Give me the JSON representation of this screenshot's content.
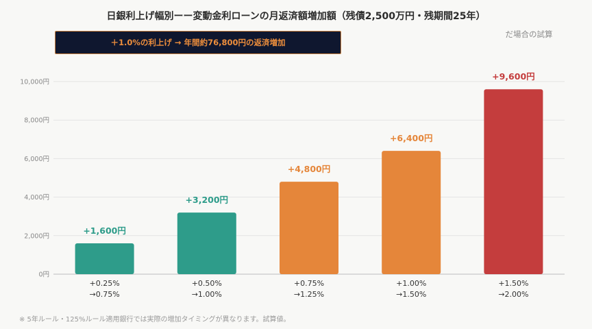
{
  "chart_data": {
    "type": "bar",
    "title": "日銀利上げ幅別ーー変動金利ローンの月返済額増加額（残債2,500万円・残期間25年）",
    "subtitle": "だ場合の試算",
    "callout": "＋1.0%の利上げ → 年間約76,800円の返済増加",
    "footnote": "※ 5年ルール・125%ルール適用銀行では実際の増加タイミングが異なります。試算値。",
    "categories": [
      [
        "+0.25%",
        "→0.75%"
      ],
      [
        "+0.50%",
        "→1.00%"
      ],
      [
        "+0.75%",
        "→1.25%"
      ],
      [
        "+1.00%",
        "→1.50%"
      ],
      [
        "+1.50%",
        "→2.00%"
      ]
    ],
    "values": [
      1600,
      3200,
      4800,
      6400,
      9600
    ],
    "data_labels": [
      "+1,600円",
      "+3,200円",
      "+4,800円",
      "+6,400円",
      "+9,600円"
    ],
    "bar_colors": [
      "#2e9c8a",
      "#2e9c8a",
      "#e5863a",
      "#e5863a",
      "#c43d3d"
    ],
    "label_colors": [
      "#2e9c8a",
      "#2e9c8a",
      "#e5863a",
      "#e5863a",
      "#c43d3d"
    ],
    "ylim": [
      0,
      10000
    ],
    "yticks": [
      0,
      2000,
      4000,
      6000,
      8000,
      10000
    ],
    "ytick_labels": [
      "0円",
      "2,000円",
      "4,000円",
      "6,000円",
      "8,000円",
      "10,000円"
    ],
    "grid": true
  }
}
